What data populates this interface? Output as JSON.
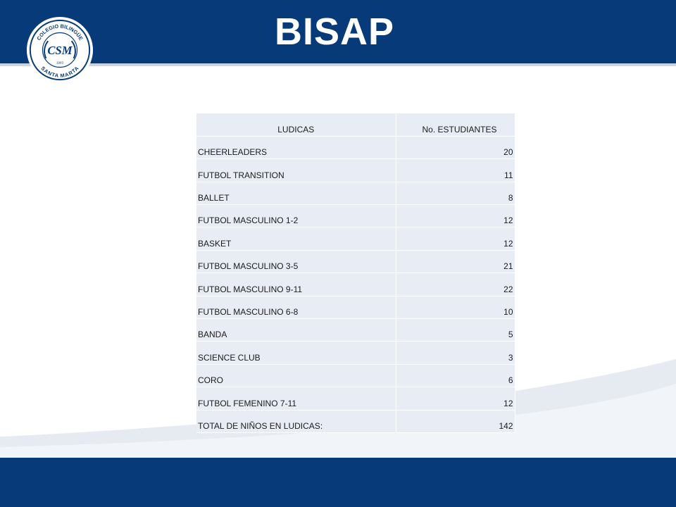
{
  "header": {
    "title": "BISAP",
    "logo_text_top": "COLEGIO BILINGÜE",
    "logo_text_bottom": "SANTA MARTA",
    "logo_monogram": "CSM",
    "logo_year": "1983"
  },
  "table": {
    "columns": [
      "LUDICAS",
      "No. ESTUDIANTES"
    ],
    "rows": [
      {
        "name": "CHEERLEADERS",
        "count": "20"
      },
      {
        "name": "FUTBOL TRANSITION",
        "count": "11"
      },
      {
        "name": "BALLET",
        "count": "8"
      },
      {
        "name": "FUTBOL MASCULINO 1-2",
        "count": "12"
      },
      {
        "name": "BASKET",
        "count": "12"
      },
      {
        "name": "FUTBOL MASCULINO 3-5",
        "count": "21"
      },
      {
        "name": "FUTBOL MASCULINO 9-11",
        "count": "22"
      },
      {
        "name": "FUTBOL MASCULINO 6-8",
        "count": "10"
      },
      {
        "name": "BANDA",
        "count": "5"
      },
      {
        "name": "SCIENCE CLUB",
        "count": "3"
      },
      {
        "name": "CORO",
        "count": "6"
      },
      {
        "name": "FUTBOL FEMENINO 7-11",
        "count": "12"
      },
      {
        "name": "TOTAL DE NIÑOS EN LUDICAS:",
        "count": "142"
      }
    ]
  },
  "colors": {
    "brand_blue": "#073a78",
    "table_fill": "#e8edf5"
  }
}
